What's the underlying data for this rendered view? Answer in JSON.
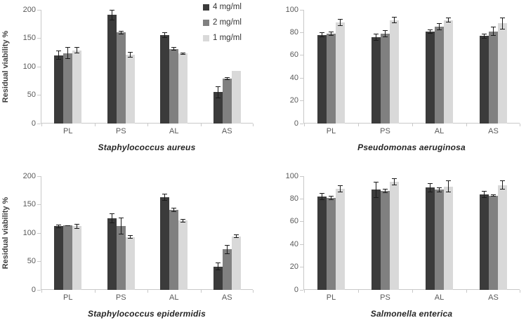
{
  "legend": {
    "items": [
      {
        "label": "4 mg/ml",
        "color": "#3b3b3b"
      },
      {
        "label": "2 mg/ml",
        "color": "#808080"
      },
      {
        "label": "1 mg/ml",
        "color": "#d9d9d9"
      }
    ]
  },
  "colors": {
    "axis": "#c9c9c9",
    "tick_text": "#595959",
    "title_text": "#262626",
    "error_bar": "#1a1a1a",
    "background": "#ffffff"
  },
  "chart_data": [
    {
      "type": "bar",
      "title": "Staphylococcus aureus",
      "ylabel": "Residual viability %",
      "categories": [
        "PL",
        "PS",
        "AL",
        "AS"
      ],
      "ylim": [
        0,
        200
      ],
      "yticks": [
        0,
        50,
        100,
        150,
        200
      ],
      "grid": false,
      "legend_position": "top-right",
      "series": [
        {
          "name": "4 mg/ml",
          "color": "#3b3b3b",
          "values": [
            120,
            191,
            156,
            55
          ],
          "errors": [
            8,
            9,
            5,
            11
          ]
        },
        {
          "name": "2 mg/ml",
          "color": "#808080",
          "values": [
            124,
            160,
            131,
            79
          ],
          "errors": [
            10,
            3,
            3,
            2
          ]
        },
        {
          "name": "1 mg/ml",
          "color": "#d9d9d9",
          "values": [
            129,
            121,
            123,
            93
          ],
          "errors": [
            5,
            5,
            2,
            0
          ]
        }
      ]
    },
    {
      "type": "bar",
      "title": "Pseudomonas aeruginosa",
      "ylabel": "",
      "categories": [
        "PL",
        "PS",
        "AL",
        "AS"
      ],
      "ylim": [
        0,
        100
      ],
      "yticks": [
        0,
        20,
        40,
        60,
        80,
        100
      ],
      "grid": false,
      "legend_position": "none",
      "series": [
        {
          "name": "4 mg/ml",
          "color": "#3b3b3b",
          "values": [
            78,
            76,
            81,
            77
          ],
          "errors": [
            2,
            3,
            2,
            2
          ]
        },
        {
          "name": "2 mg/ml",
          "color": "#808080",
          "values": [
            79,
            79,
            85,
            81
          ],
          "errors": [
            2,
            3,
            3,
            4
          ]
        },
        {
          "name": "1 mg/ml",
          "color": "#d9d9d9",
          "values": [
            89,
            91,
            91,
            88
          ],
          "errors": [
            3,
            3,
            2,
            5
          ]
        }
      ]
    },
    {
      "type": "bar",
      "title": "Staphylococcus epidermidis",
      "ylabel": "Residual viability %",
      "categories": [
        "PL",
        "PS",
        "AL",
        "AS"
      ],
      "ylim": [
        0,
        200
      ],
      "yticks": [
        0,
        50,
        100,
        150,
        200
      ],
      "grid": false,
      "legend_position": "none",
      "series": [
        {
          "name": "4 mg/ml",
          "color": "#3b3b3b",
          "values": [
            112,
            126,
            163,
            41
          ],
          "errors": [
            3,
            9,
            6,
            7
          ]
        },
        {
          "name": "2 mg/ml",
          "color": "#808080",
          "values": [
            113,
            112,
            141,
            71
          ],
          "errors": [
            1,
            15,
            4,
            8
          ]
        },
        {
          "name": "1 mg/ml",
          "color": "#d9d9d9",
          "values": [
            112,
            93,
            122,
            94
          ],
          "errors": [
            4,
            3,
            3,
            3
          ]
        }
      ]
    },
    {
      "type": "bar",
      "title": "Salmonella enterica",
      "ylabel": "",
      "categories": [
        "PL",
        "PS",
        "AL",
        "AS"
      ],
      "ylim": [
        0,
        100
      ],
      "yticks": [
        0,
        20,
        40,
        60,
        80,
        100
      ],
      "grid": false,
      "legend_position": "none",
      "series": [
        {
          "name": "4 mg/ml",
          "color": "#3b3b3b",
          "values": [
            82,
            88,
            90,
            84
          ],
          "errors": [
            3,
            7,
            4,
            3
          ]
        },
        {
          "name": "2 mg/ml",
          "color": "#808080",
          "values": [
            81,
            87,
            88,
            83
          ],
          "errors": [
            2,
            2,
            2,
            1
          ]
        },
        {
          "name": "1 mg/ml",
          "color": "#d9d9d9",
          "values": [
            89,
            95,
            91,
            92
          ],
          "errors": [
            3,
            3,
            5,
            4
          ]
        }
      ]
    }
  ]
}
